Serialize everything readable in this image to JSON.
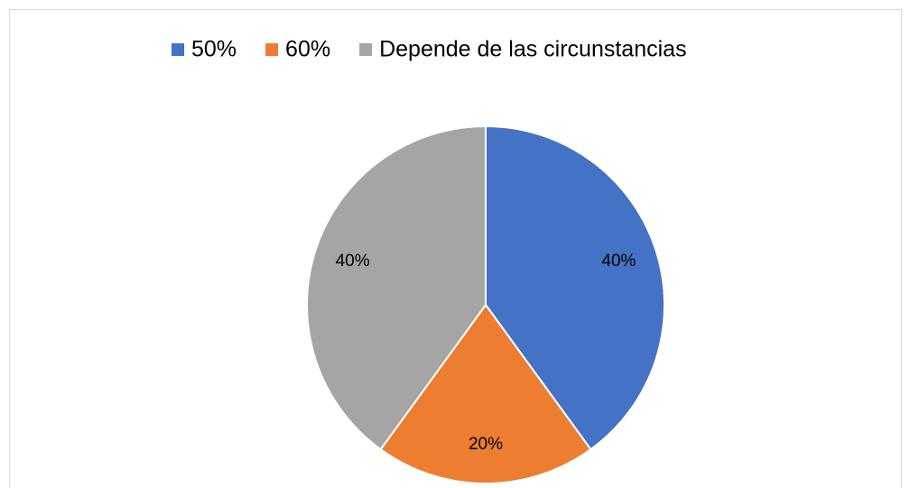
{
  "chart_data": {
    "type": "pie",
    "categories": [
      "50%",
      "60%",
      "Depende de las circunstancias"
    ],
    "values": [
      40,
      20,
      40
    ],
    "value_labels": [
      "40%",
      "20%",
      "40%"
    ],
    "colors": [
      "#4472c4",
      "#ed7d31",
      "#a5a5a5"
    ],
    "legend": "top"
  }
}
